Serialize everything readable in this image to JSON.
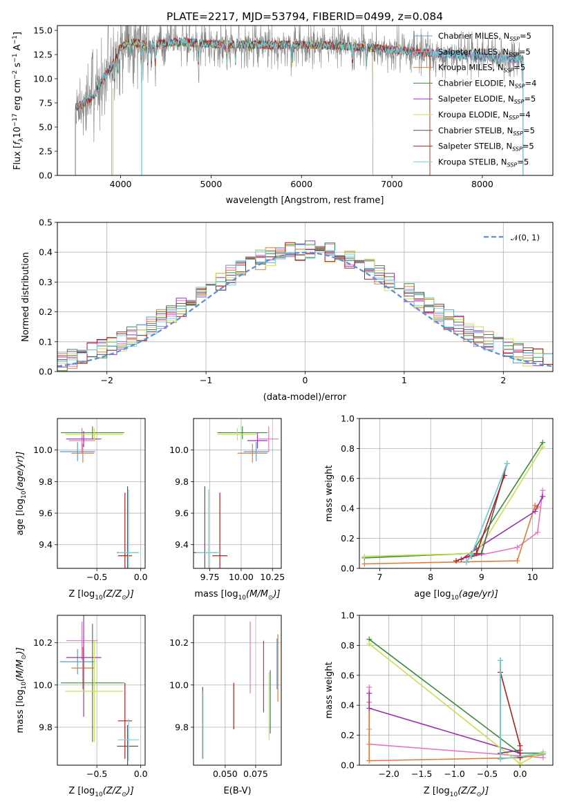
{
  "title": "PLATE=2217, MJD=53794, FIBERID=0499, z=0.084",
  "colors": {
    "Chabrier MILES": "#5b9bd5",
    "Salpeter MILES": "#e377c2",
    "Kroupa MILES": "#e07b39",
    "Chabrier ELODIE": "#3a8a3a",
    "Salpeter ELODIE": "#9b30b0",
    "Kroupa ELODIE": "#c8e04a",
    "Chabrier STELIB": "#555555",
    "Salpeter STELIB": "#b01c1c",
    "Kroupa STELIB": "#6fd3d8",
    "observed": "#808080",
    "normal": "#5b8fd6"
  },
  "chart_data": [
    {
      "type": "line",
      "id": "spectrum",
      "title": "PLATE=2217, MJD=53794, FIBERID=0499, z=0.084",
      "xlabel": "wavelength [Angstrom, rest frame]",
      "ylabel_parts": [
        "Flux [",
        "f",
        "λ",
        "10",
        "−17",
        " erg cm",
        "−2",
        " s",
        "−1",
        " A",
        "−1",
        "]"
      ],
      "xlim": [
        3300,
        8780
      ],
      "ylim": [
        0,
        15.5
      ],
      "xticks": [
        4000,
        5000,
        6000,
        7000,
        8000
      ],
      "xticklabels": [
        "4000",
        "5000",
        "6000",
        "7000",
        "8000"
      ],
      "yticks": [
        0,
        2.5,
        5,
        7.5,
        10,
        12.5,
        15
      ],
      "yticklabels": [
        "0.0",
        "2.5",
        "5.0",
        "7.5",
        "10.0",
        "12.5",
        "15.0"
      ],
      "grid": false,
      "legend_position": "right",
      "continuum": {
        "x": [
          3500,
          3600,
          3700,
          3800,
          3900,
          4000,
          4100,
          4300,
          4600,
          5000,
          5500,
          6000,
          6500,
          7000,
          7500,
          8000,
          8400,
          8500
        ],
        "y": [
          7.0,
          7.5,
          8.2,
          10.0,
          11.2,
          13.3,
          13.8,
          13.5,
          13.8,
          13.6,
          13.5,
          13.5,
          13.4,
          13.0,
          12.6,
          12.3,
          12.0,
          12.0
        ]
      },
      "series": [
        {
          "name": "Chabrier MILES",
          "nssp": "5",
          "xmax": 8450
        },
        {
          "name": "Salpeter MILES",
          "nssp": "5",
          "xmax": 8450
        },
        {
          "name": "Kroupa MILES",
          "nssp": "5",
          "xmax": 7420
        },
        {
          "name": "Chabrier ELODIE",
          "nssp": "4",
          "xmax": 6790
        },
        {
          "name": "Salpeter ELODIE",
          "nssp": "5",
          "xmax": 6790
        },
        {
          "name": "Kroupa ELODIE",
          "nssp": "4",
          "xmax": 6790
        },
        {
          "name": "Chabrier STELIB",
          "nssp": "5",
          "xmax": 8450
        },
        {
          "name": "Salpeter STELIB",
          "nssp": "5",
          "xmax": 7420
        },
        {
          "name": "Kroupa STELIB",
          "nssp": "5",
          "xmax": 8450
        }
      ]
    },
    {
      "type": "histogram",
      "id": "residuals",
      "xlabel": "(data-model)/error",
      "ylabel": "Normed distribution",
      "xlim": [
        -2.5,
        2.5
      ],
      "ylim": [
        0,
        0.5
      ],
      "xticks": [
        -2,
        -1,
        0,
        1,
        2
      ],
      "xticklabels": [
        "−2",
        "−1",
        "0",
        "1",
        "2"
      ],
      "yticks": [
        0,
        0.1,
        0.2,
        0.3,
        0.4,
        0.5
      ],
      "yticklabels": [
        "0.0",
        "0.1",
        "0.2",
        "0.3",
        "0.4",
        "0.5"
      ],
      "grid": true,
      "bin_width": 0.1,
      "legend_label": "𝒩(0, 1)",
      "legend_position": "top-right"
    },
    {
      "type": "errorbar",
      "id": "age-vs-Z",
      "xlabel_parts": [
        "Z [log",
        "10",
        "(Z/Z",
        "⊙",
        ")]"
      ],
      "ylabel_parts": [
        "age  [log",
        "10",
        "(age/yr)]"
      ],
      "xlim": [
        -0.95,
        0.05
      ],
      "ylim": [
        9.25,
        10.2
      ],
      "xticks": [
        -0.5,
        0.0
      ],
      "xticklabels": [
        "−0.5",
        "0.0"
      ],
      "yticks": [
        9.4,
        9.6,
        9.8,
        10.0
      ],
      "yticklabels": [
        "9.4",
        "9.6",
        "9.8",
        "10.0"
      ],
      "grid": true,
      "points": [
        {
          "series": "Chabrier MILES",
          "x": -0.72,
          "xerr": 0.2,
          "y": 9.99,
          "yerr": 0.06
        },
        {
          "series": "Salpeter MILES",
          "x": -0.67,
          "xerr": 0.15,
          "y": 10.06,
          "yerr": 0.08
        },
        {
          "series": "Kroupa MILES",
          "x": -0.66,
          "xerr": 0.13,
          "y": 9.98,
          "yerr": 0.06
        },
        {
          "series": "Chabrier ELODIE",
          "x": -0.55,
          "xerr": 0.36,
          "y": 10.11,
          "yerr": 0.04
        },
        {
          "series": "Salpeter ELODIE",
          "x": -0.65,
          "xerr": 0.2,
          "y": 10.07,
          "yerr": 0.05
        },
        {
          "series": "Kroupa ELODIE",
          "x": -0.53,
          "xerr": 0.33,
          "y": 10.1,
          "yerr": 0.04
        },
        {
          "series": "Chabrier STELIB",
          "x": -0.15,
          "xerr": 0.12,
          "y": 9.35,
          "yerr": 0.42
        },
        {
          "series": "Salpeter STELIB",
          "x": -0.18,
          "xerr": 0.08,
          "y": 9.33,
          "yerr": 0.4
        },
        {
          "series": "Kroupa STELIB",
          "x": -0.14,
          "xerr": 0.12,
          "y": 9.35,
          "yerr": 0.4
        }
      ]
    },
    {
      "type": "errorbar",
      "id": "age-vs-mass",
      "xlabel_parts": [
        "mass [log",
        "10",
        "(M/M",
        "⊙",
        ")]"
      ],
      "xlim": [
        9.62,
        10.32
      ],
      "ylim": [
        9.25,
        10.2
      ],
      "xticks": [
        9.75,
        10.0,
        10.25
      ],
      "xticklabels": [
        "9.75",
        "10.00",
        "10.25"
      ],
      "yticks": [
        9.4,
        9.6,
        9.8,
        10.0
      ],
      "yticklabels": [
        "9.4",
        "9.6",
        "9.8",
        "10.0"
      ],
      "grid": true,
      "points": [
        {
          "series": "Chabrier MILES",
          "x": 10.12,
          "xerr": 0.1,
          "y": 9.99,
          "yerr": 0.06
        },
        {
          "series": "Salpeter MILES",
          "x": 10.22,
          "xerr": 0.08,
          "y": 10.07,
          "yerr": 0.08
        },
        {
          "series": "Kroupa MILES",
          "x": 10.09,
          "xerr": 0.12,
          "y": 9.98,
          "yerr": 0.06
        },
        {
          "series": "Chabrier ELODIE",
          "x": 10.01,
          "xerr": 0.2,
          "y": 10.11,
          "yerr": 0.04
        },
        {
          "series": "Salpeter ELODIE",
          "x": 10.13,
          "xerr": 0.08,
          "y": 10.06,
          "yerr": 0.05
        },
        {
          "series": "Kroupa ELODIE",
          "x": 9.97,
          "xerr": 0.16,
          "y": 10.1,
          "yerr": 0.04
        },
        {
          "series": "Chabrier STELIB",
          "x": 9.71,
          "xerr": 0.1,
          "y": 9.35,
          "yerr": 0.42
        },
        {
          "series": "Salpeter STELIB",
          "x": 9.83,
          "xerr": 0.06,
          "y": 9.33,
          "yerr": 0.4
        },
        {
          "series": "Kroupa STELIB",
          "x": 9.74,
          "xerr": 0.1,
          "y": 9.35,
          "yerr": 0.4
        }
      ]
    },
    {
      "type": "line",
      "id": "weight-vs-age",
      "xlabel_parts": [
        "age  [log",
        "10",
        "(age/yr)]"
      ],
      "ylabel": "mass weight",
      "xlim": [
        6.6,
        10.4
      ],
      "ylim": [
        0,
        1
      ],
      "xticks": [
        7,
        8,
        9,
        10
      ],
      "xticklabels": [
        "7",
        "8",
        "9",
        "10"
      ],
      "yticks": [
        0,
        0.2,
        0.4,
        0.6,
        0.8,
        1.0
      ],
      "yticklabels": [
        "0.0",
        "0.2",
        "0.4",
        "0.6",
        "0.8",
        "1.0"
      ],
      "grid": true,
      "series": [
        {
          "name": "Chabrier MILES",
          "x": [
            8.7,
            8.8,
            9.5
          ],
          "y": [
            0.04,
            0.09,
            0.7
          ]
        },
        {
          "name": "Salpeter MILES",
          "x": [
            8.7,
            9.7,
            10.1,
            10.2
          ],
          "y": [
            0.07,
            0.14,
            0.24,
            0.52
          ]
        },
        {
          "name": "Kroupa MILES",
          "x": [
            6.7,
            9.7,
            10.05,
            10.1
          ],
          "y": [
            0.03,
            0.05,
            0.42,
            0.41
          ]
        },
        {
          "name": "Chabrier ELODIE",
          "x": [
            6.7,
            8.8,
            10.2
          ],
          "y": [
            0.07,
            0.1,
            0.84
          ]
        },
        {
          "name": "Salpeter ELODIE",
          "x": [
            8.6,
            8.9,
            10.05,
            10.2
          ],
          "y": [
            0.06,
            0.13,
            0.38,
            0.48
          ]
        },
        {
          "name": "Kroupa ELODIE",
          "x": [
            6.7,
            8.9,
            10.2
          ],
          "y": [
            0.08,
            0.1,
            0.81
          ]
        },
        {
          "name": "Chabrier STELIB",
          "x": [
            8.8,
            9.0,
            9.5
          ],
          "y": [
            0.08,
            0.1,
            0.7
          ]
        },
        {
          "name": "Salpeter STELIB",
          "x": [
            8.5,
            8.9,
            9.45
          ],
          "y": [
            0.05,
            0.1,
            0.62
          ]
        },
        {
          "name": "Kroupa STELIB",
          "x": [
            8.7,
            8.8,
            9.5
          ],
          "y": [
            0.04,
            0.09,
            0.7
          ]
        }
      ]
    },
    {
      "type": "errorbar",
      "id": "mass-vs-Z",
      "xlabel_parts": [
        "Z [log",
        "10",
        "(Z/Z",
        "⊙",
        ")]"
      ],
      "ylabel_parts": [
        "mass [log",
        "10",
        "(M/M",
        "⊙",
        ")]"
      ],
      "xlim": [
        -0.95,
        0.05
      ],
      "ylim": [
        9.62,
        10.33
      ],
      "xticks": [
        -0.5,
        0.0
      ],
      "xticklabels": [
        "−0.5",
        "0.0"
      ],
      "yticks": [
        9.8,
        10.0,
        10.2
      ],
      "yticklabels": [
        "9.8",
        "10.0",
        "10.2"
      ],
      "grid": true,
      "points": [
        {
          "series": "Chabrier MILES",
          "x": -0.72,
          "xerr": 0.2,
          "y": 10.11,
          "yerr": 0.06
        },
        {
          "series": "Salpeter MILES",
          "x": -0.67,
          "xerr": 0.18,
          "y": 10.21,
          "yerr": 0.09
        },
        {
          "series": "Kroupa MILES",
          "x": -0.66,
          "xerr": 0.13,
          "y": 10.08,
          "yerr": 0.1
        },
        {
          "series": "Chabrier ELODIE",
          "x": -0.55,
          "xerr": 0.36,
          "y": 10.01,
          "yerr": 0.28
        },
        {
          "series": "Salpeter ELODIE",
          "x": -0.65,
          "xerr": 0.2,
          "y": 10.13,
          "yerr": 0.28
        },
        {
          "series": "Kroupa ELODIE",
          "x": -0.53,
          "xerr": 0.33,
          "y": 9.97,
          "yerr": 0.24
        },
        {
          "series": "Chabrier STELIB",
          "x": -0.15,
          "xerr": 0.12,
          "y": 9.71,
          "yerr": 0.1
        },
        {
          "series": "Salpeter STELIB",
          "x": -0.18,
          "xerr": 0.08,
          "y": 9.83,
          "yerr": 0.18
        },
        {
          "series": "Kroupa STELIB",
          "x": -0.14,
          "xerr": 0.12,
          "y": 9.74,
          "yerr": 0.1
        }
      ]
    },
    {
      "type": "errorbar",
      "id": "mass-vs-ebv",
      "xlabel": "E(B-V)",
      "xlim": [
        0.024,
        0.096
      ],
      "ylim": [
        9.62,
        10.33
      ],
      "xticks": [
        0.05,
        0.075
      ],
      "xticklabels": [
        "0.050",
        "0.075"
      ],
      "yticks": [
        9.8,
        10.0,
        10.2
      ],
      "yticklabels": [
        "9.8",
        "10.0",
        "10.2"
      ],
      "grid": true,
      "points": [
        {
          "series": "Chabrier MILES",
          "x": 0.0925,
          "y": 10.1,
          "yerr": 0.12
        },
        {
          "series": "Salpeter MILES",
          "x": 0.0705,
          "y": 10.13,
          "yerr": 0.17
        },
        {
          "series": "Kroupa MILES",
          "x": 0.0932,
          "y": 10.08,
          "yerr": 0.16
        },
        {
          "series": "Chabrier ELODIE",
          "x": 0.087,
          "y": 9.92,
          "yerr": 0.15
        },
        {
          "series": "Salpeter ELODIE",
          "x": 0.0815,
          "y": 10.04,
          "yerr": 0.17
        },
        {
          "series": "Kroupa ELODIE",
          "x": 0.086,
          "y": 9.9,
          "yerr": 0.16
        },
        {
          "series": "Chabrier STELIB",
          "x": 0.0315,
          "y": 9.82,
          "yerr": 0.17
        },
        {
          "series": "Salpeter STELIB",
          "x": 0.057,
          "y": 9.9,
          "yerr": 0.11
        },
        {
          "series": "Kroupa STELIB",
          "x": 0.0318,
          "y": 9.81,
          "yerr": 0.16
        }
      ]
    },
    {
      "type": "line",
      "id": "weight-vs-Z",
      "xlabel_parts": [
        "Z [log",
        "10",
        "(Z/Z",
        "⊙",
        ")]"
      ],
      "ylabel": "mass weight",
      "xlim": [
        -2.45,
        0.5
      ],
      "ylim": [
        0,
        1
      ],
      "xticks": [
        -2.0,
        -1.5,
        -1.0,
        -0.5,
        0.0
      ],
      "xticklabels": [
        "−2.0",
        "−1.5",
        "−1.0",
        "−0.5",
        "0.0"
      ],
      "yticks": [
        0,
        0.2,
        0.4,
        0.6,
        0.8,
        1.0
      ],
      "yticklabels": [
        "0.0",
        "0.2",
        "0.4",
        "0.6",
        "0.8",
        "1.0"
      ],
      "grid": true,
      "series": [
        {
          "name": "Chabrier MILES",
          "x": [
            -0.3,
            -0.3,
            0.35
          ],
          "y": [
            0.7,
            0.04,
            0.08
          ]
        },
        {
          "name": "Salpeter MILES",
          "x": [
            -2.3,
            -2.3,
            -2.3,
            0.35
          ],
          "y": [
            0.52,
            0.24,
            0.14,
            0.05
          ]
        },
        {
          "name": "Kroupa MILES",
          "x": [
            -2.3,
            -2.3,
            0.0,
            0.35
          ],
          "y": [
            0.42,
            0.03,
            0.05,
            0.07
          ]
        },
        {
          "name": "Chabrier ELODIE",
          "x": [
            -2.3,
            0.0,
            0.35
          ],
          "y": [
            0.84,
            0.08,
            0.08
          ]
        },
        {
          "name": "Salpeter ELODIE",
          "x": [
            -2.3,
            -2.3,
            0.0,
            0.0
          ],
          "y": [
            0.48,
            0.38,
            0.08,
            0.06
          ]
        },
        {
          "name": "Kroupa ELODIE",
          "x": [
            -2.3,
            0.0,
            0.35
          ],
          "y": [
            0.81,
            0.01,
            0.09
          ]
        },
        {
          "name": "Chabrier STELIB",
          "x": [
            -0.3,
            -0.3,
            0.0
          ],
          "y": [
            0.7,
            0.08,
            0.1
          ]
        },
        {
          "name": "Salpeter STELIB",
          "x": [
            -0.3,
            0.0,
            0.0
          ],
          "y": [
            0.62,
            0.13,
            0.05
          ]
        },
        {
          "name": "Kroupa STELIB",
          "x": [
            -0.3,
            -0.3,
            0.35
          ],
          "y": [
            0.7,
            0.04,
            0.08
          ]
        }
      ]
    }
  ]
}
